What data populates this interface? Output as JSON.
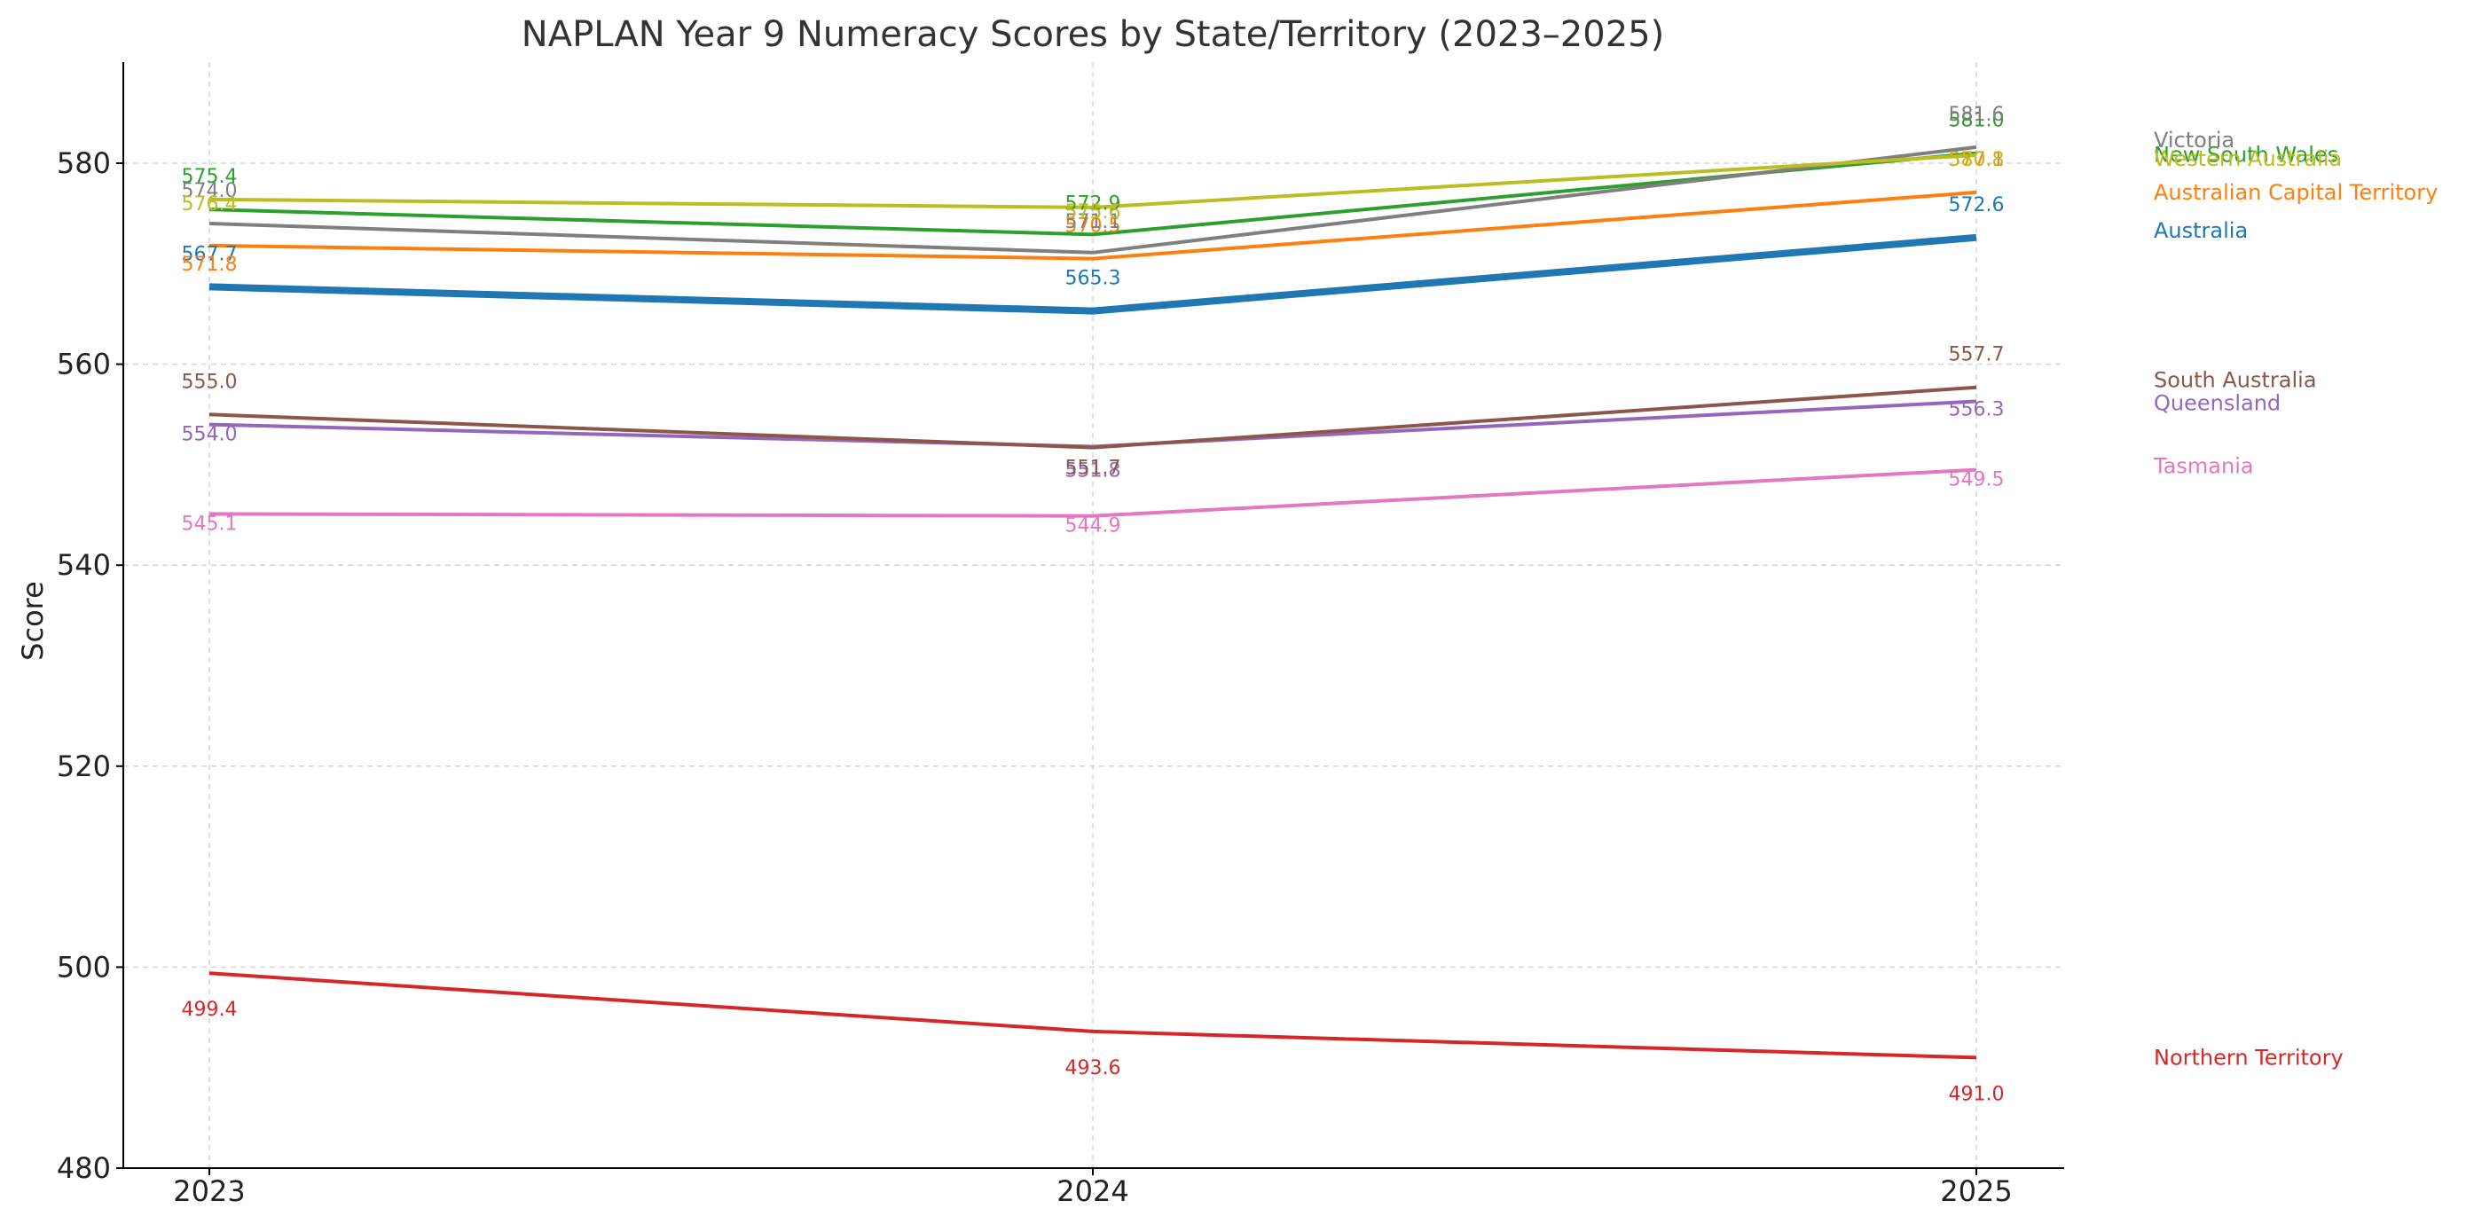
{
  "chart_data": {
    "type": "line",
    "title": "NAPLAN Year 9 Numeracy Scores by State/Territory (2023–2025)",
    "xlabel": "",
    "ylabel": "Score",
    "x": [
      "2023",
      "2024",
      "2025"
    ],
    "ylim": [
      480,
      590
    ],
    "yticks": [
      "480",
      "500",
      "520",
      "540",
      "560",
      "580"
    ],
    "grid": true,
    "legend": "right-edge labels",
    "series": [
      {
        "name": "Australia",
        "color": "#1f77b4",
        "highlight": true,
        "values": [
          567.7,
          565.3,
          572.6
        ],
        "labels": [
          "567.7",
          "565.3",
          "572.6"
        ]
      },
      {
        "name": "Australian Capital Territory",
        "color": "#ff7f0e",
        "values": [
          571.8,
          570.5,
          577.1
        ],
        "labels": [
          "571.8",
          "570.5",
          "577.1"
        ]
      },
      {
        "name": "New South Wales",
        "color": "#2ca02c",
        "values": [
          575.4,
          572.9,
          581.0
        ],
        "labels": [
          "575.4",
          "572.9",
          "581.0"
        ]
      },
      {
        "name": "Northern Territory",
        "color": "#d62728",
        "values": [
          499.4,
          493.6,
          491.0
        ],
        "labels": [
          "499.4",
          "493.6",
          "491.0"
        ]
      },
      {
        "name": "Queensland",
        "color": "#9467bd",
        "values": [
          554.0,
          551.8,
          556.3
        ],
        "labels": [
          "554.0",
          "551.8",
          "556.3"
        ]
      },
      {
        "name": "South Australia",
        "color": "#8c564b",
        "values": [
          555.0,
          551.7,
          557.7
        ],
        "labels": [
          "555.0",
          "551.7",
          "557.7"
        ]
      },
      {
        "name": "Tasmania",
        "color": "#e377c2",
        "values": [
          545.1,
          544.9,
          549.5
        ],
        "labels": [
          "545.1",
          "544.9",
          "549.5"
        ]
      },
      {
        "name": "Victoria",
        "color": "#7f7f7f",
        "values": [
          574.0,
          571.1,
          581.6
        ],
        "labels": [
          "574.0",
          "571.1",
          "581.6"
        ]
      },
      {
        "name": "Western Australia",
        "color": "#bcbd22",
        "values": [
          576.4,
          575.6,
          580.8
        ],
        "labels": [
          "576.4",
          "575.6",
          "580.8"
        ]
      }
    ]
  }
}
